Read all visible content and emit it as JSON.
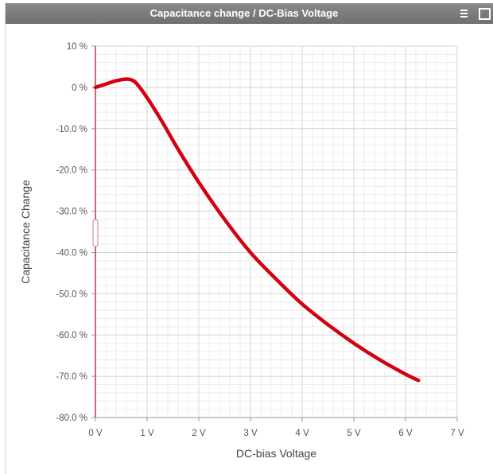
{
  "window": {
    "title": "Capacitance change / DC-Bias Voltage",
    "menu_icon": "hamburger-menu-icon",
    "maximize_icon": "maximize-icon"
  },
  "chart_data": {
    "type": "line",
    "title": "Capacitance change / DC-Bias Voltage",
    "xlabel": "DC-bias Voltage",
    "ylabel": "Capacitance Change",
    "xlim": [
      0,
      7
    ],
    "ylim": [
      -80,
      10
    ],
    "x_ticks": [
      "0 V",
      "1 V",
      "2 V",
      "3 V",
      "4 V",
      "5 V",
      "6 V",
      "7 V"
    ],
    "y_ticks": [
      "10 %",
      "0 %",
      "-10.0 %",
      "-20.0 %",
      "-30.0 %",
      "-40.0 %",
      "-50.0 %",
      "-60.0 %",
      "-70.0 %",
      "-80.0 %"
    ],
    "grid": true,
    "legend": "none",
    "series": [
      {
        "color": "#d40010",
        "x": [
          0,
          0.2,
          0.4,
          0.6,
          0.7,
          0.8,
          1.0,
          1.3,
          1.6,
          2.0,
          2.5,
          3.0,
          3.5,
          4.0,
          4.5,
          5.0,
          5.5,
          6.0,
          6.25
        ],
        "y": [
          0,
          0.8,
          1.6,
          2.0,
          1.8,
          0.9,
          -2.5,
          -8.5,
          -15.0,
          -23.0,
          -32.0,
          -40.0,
          -46.5,
          -52.5,
          -57.5,
          -62.0,
          -66.0,
          -69.5,
          -71.0
        ]
      }
    ]
  }
}
